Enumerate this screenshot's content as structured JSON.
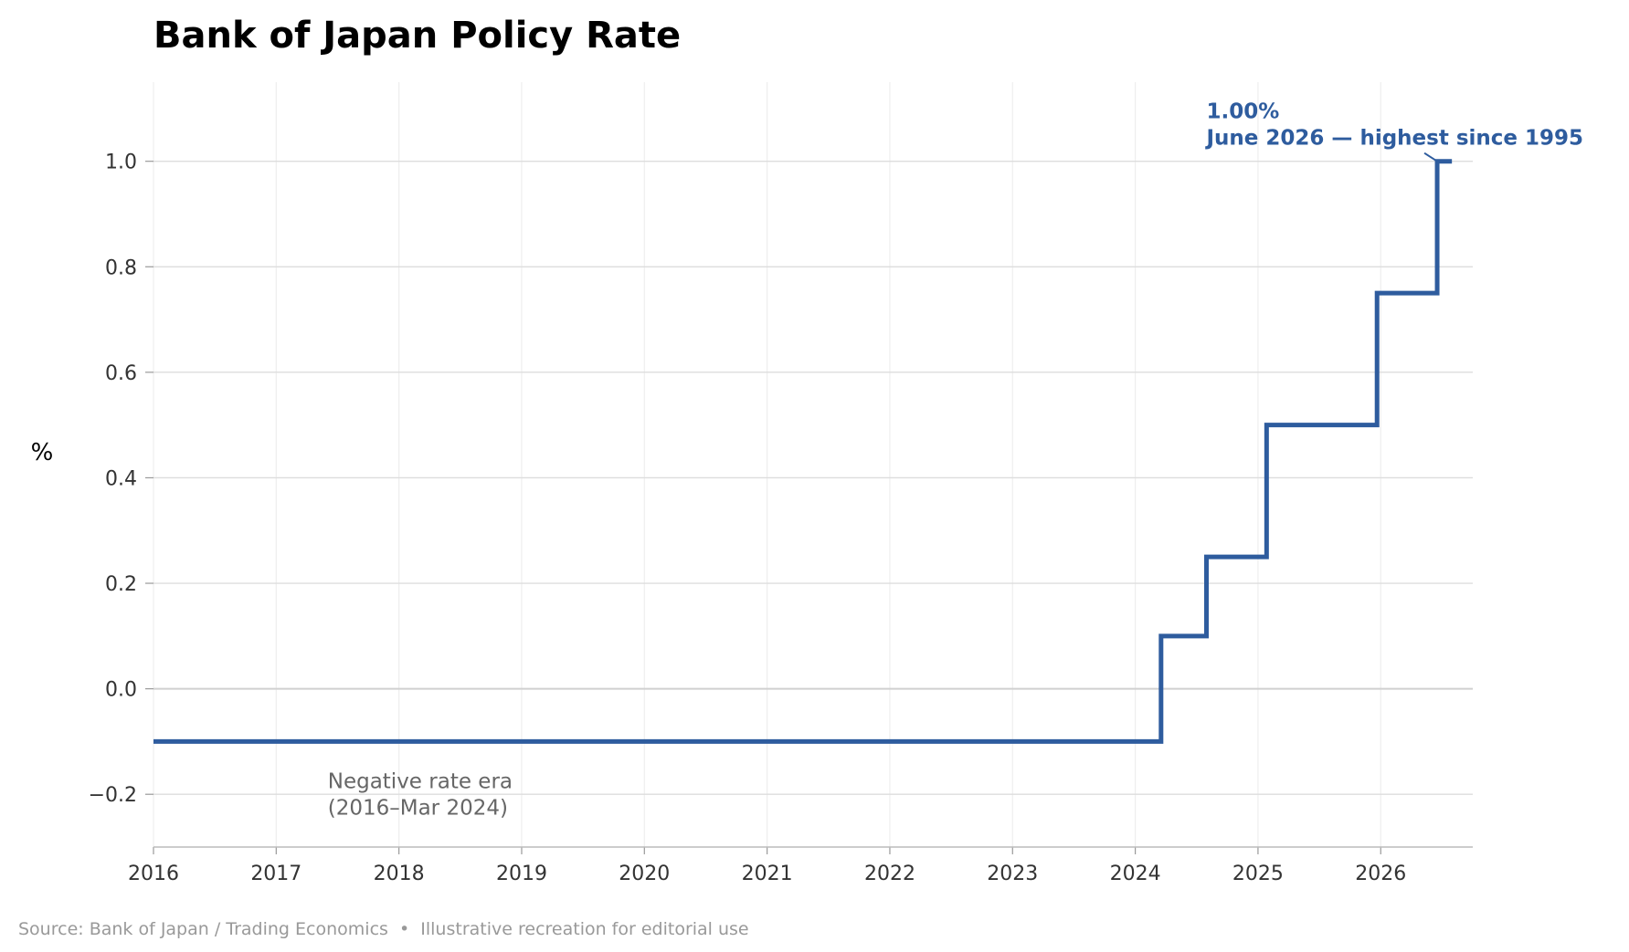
{
  "title": "Bank of Japan Policy Rate",
  "source_note": "Source: Bank of Japan / Trading Economics  •  Illustrative recreation for editorial use",
  "colors": {
    "line": "#2e5c9e",
    "grid": "#dddddd",
    "vgrid": "#eeeeee",
    "axis": "#bbbbbb"
  },
  "chart_data": {
    "type": "line",
    "step": "post",
    "title": "Bank of Japan Policy Rate",
    "xlabel": "",
    "ylabel": "%",
    "xlim": [
      2016.0,
      2026.75
    ],
    "ylim": [
      -0.3,
      1.15
    ],
    "x_ticks": [
      2016,
      2017,
      2018,
      2019,
      2020,
      2021,
      2022,
      2023,
      2024,
      2025,
      2026
    ],
    "x_tick_labels": [
      "2016",
      "2017",
      "2018",
      "2019",
      "2020",
      "2021",
      "2022",
      "2023",
      "2024",
      "2025",
      "2026"
    ],
    "y_ticks": [
      -0.2,
      0.0,
      0.2,
      0.4,
      0.6,
      0.8,
      1.0
    ],
    "y_tick_labels": [
      "−0.2",
      "0.0",
      "0.2",
      "0.4",
      "0.6",
      "0.8",
      "1.0"
    ],
    "grid": true,
    "series": [
      {
        "x": [
          2016.0,
          2024.21,
          2024.58,
          2025.07,
          2025.97,
          2026.46,
          2026.58
        ],
        "values": [
          -0.1,
          0.1,
          0.25,
          0.5,
          0.75,
          1.0,
          1.0
        ]
      }
    ],
    "annotations": [
      {
        "lines": [
          "1.00%",
          "June 2026 — highest since 1995"
        ],
        "x": 2024.58,
        "y": 1.07,
        "point_x": 2026.46,
        "point_y": 1.0,
        "style": "accent"
      },
      {
        "lines": [
          "Negative rate era",
          "(2016–Mar 2024)"
        ],
        "x": 2017.42,
        "y": -0.2,
        "style": "muted"
      }
    ]
  }
}
